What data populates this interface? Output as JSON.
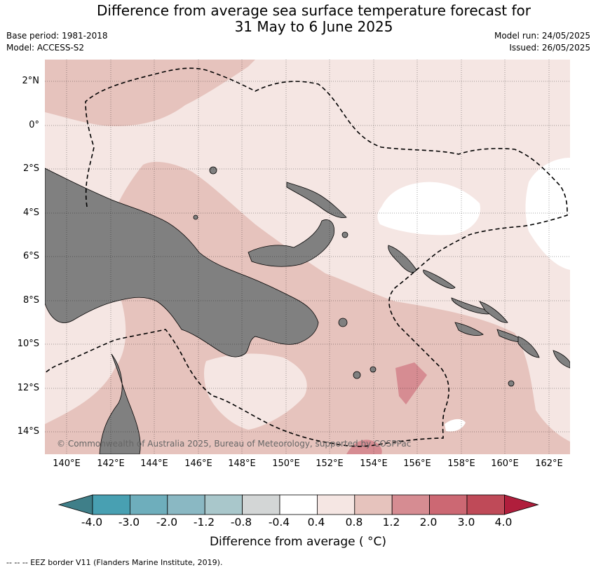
{
  "title_line1": "Difference from average sea surface temperature forecast for",
  "title_line2": "31 May to 6 June 2025",
  "meta": {
    "base_period": "Base period: 1981-2018",
    "model": "Model: ACCESS-S2",
    "model_run": "Model run: 24/05/2025",
    "issued": "Issued: 26/05/2025"
  },
  "lat_labels": [
    "2°N",
    "0°",
    "2°S",
    "4°S",
    "6°S",
    "8°S",
    "10°S",
    "12°S",
    "14°S"
  ],
  "lon_labels": [
    "140°E",
    "142°E",
    "144°E",
    "146°E",
    "148°E",
    "150°E",
    "152°E",
    "154°E",
    "156°E",
    "158°E",
    "160°E",
    "162°E"
  ],
  "copyright": "© Commonwealth of Australia 2025, Bureau of Meteorology, supported by COSPPac",
  "colorbar": {
    "ticks": [
      "-4.0",
      "-3.0",
      "-2.0",
      "-1.2",
      "-0.8",
      "-0.4",
      "0.4",
      "0.8",
      "1.2",
      "2.0",
      "3.0",
      "4.0"
    ],
    "colors": [
      "#3f7f89",
      "#48a0b2",
      "#6eaebc",
      "#8ab8c3",
      "#a9c7cb",
      "#d3d6d6",
      "#ffffff",
      "#f5e6e3",
      "#e6c3bd",
      "#d68c92",
      "#cc6873",
      "#bf4a58",
      "#b01e3c"
    ],
    "label": "Difference from average ( °C)"
  },
  "footer": "--  --  -- EEZ border V11 (Flanders Marine Institute, 2019)."
}
